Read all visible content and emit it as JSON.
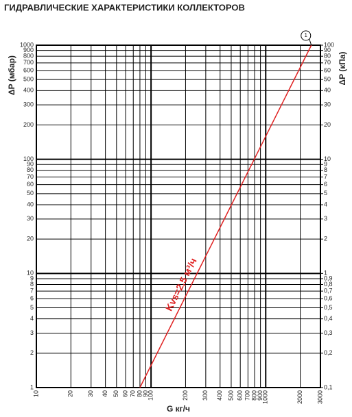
{
  "chart_data": {
    "type": "line",
    "title": "ГИДРАВЛИЧЕСКИЕ ХАРАКТЕРИСТИКИ КОЛЛЕКТОРОВ",
    "xlabel": "G кг/ч",
    "ylabel": "ΔP (мбар)",
    "y2label": "ΔP (кПа)",
    "xscale": "log",
    "yscale": "log",
    "grid": true,
    "xlim": [
      10,
      3000
    ],
    "ylim": [
      1,
      1000
    ],
    "y2lim": [
      0.1,
      100
    ],
    "xticks": [
      10,
      20,
      30,
      40,
      50,
      60,
      70,
      80,
      90,
      100,
      200,
      300,
      400,
      500,
      600,
      700,
      800,
      900,
      1000,
      2000,
      3000
    ],
    "yticks": [
      1,
      2,
      3,
      4,
      5,
      6,
      7,
      8,
      9,
      10,
      20,
      30,
      40,
      50,
      60,
      70,
      80,
      90,
      100,
      200,
      300,
      400,
      500,
      600,
      700,
      800,
      900,
      1000
    ],
    "y2ticks": [
      {
        "value": 0.1,
        "label": "0,1"
      },
      {
        "value": 0.2,
        "label": "0,2"
      },
      {
        "value": 0.3,
        "label": "0,3"
      },
      {
        "value": 0.4,
        "label": "0,4"
      },
      {
        "value": 0.5,
        "label": "0,5"
      },
      {
        "value": 0.6,
        "label": "0,6"
      },
      {
        "value": 0.7,
        "label": "0,7"
      },
      {
        "value": 0.8,
        "label": "0,8"
      },
      {
        "value": 0.9,
        "label": "0,9"
      },
      1,
      2,
      3,
      4,
      5,
      6,
      7,
      8,
      9,
      10,
      20,
      30,
      40,
      50,
      60,
      70,
      80,
      90,
      100
    ],
    "x": [
      80,
      2500
    ],
    "series": [
      {
        "color": "#e02020",
        "values": [
          1,
          1000
        ]
      }
    ],
    "annotations": [
      {
        "text": "Kvs=2,5 м³/ч"
      },
      {
        "text": "1"
      }
    ]
  }
}
